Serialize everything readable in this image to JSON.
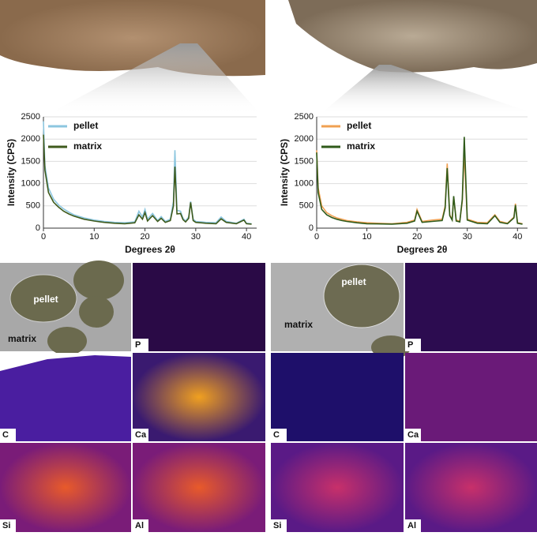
{
  "chart_data": [
    {
      "type": "line",
      "xlabel": "Degrees 2θ",
      "ylabel": "Intensity (CPS)",
      "x": [
        0,
        0.3,
        1,
        2,
        3,
        4,
        5,
        6,
        8,
        10,
        12,
        14,
        16,
        18,
        18.8,
        19.5,
        20,
        20.5,
        21.5,
        22.5,
        23.2,
        24,
        25,
        25.6,
        25.9,
        26.3,
        27,
        27.5,
        28,
        28.6,
        29,
        29.5,
        30,
        32,
        34,
        35,
        36,
        38,
        39.5,
        40,
        41
      ],
      "series": [
        {
          "name": "pellet",
          "color": "#8cc6df",
          "values": [
            2400,
            1400,
            900,
            650,
            520,
            430,
            360,
            300,
            230,
            180,
            150,
            130,
            120,
            140,
            380,
            250,
            420,
            200,
            330,
            170,
            260,
            150,
            200,
            600,
            1750,
            400,
            380,
            220,
            160,
            250,
            600,
            200,
            150,
            130,
            120,
            250,
            150,
            110,
            200,
            110,
            100
          ]
        },
        {
          "name": "matrix",
          "color": "#3f5a1c",
          "values": [
            2100,
            1300,
            800,
            580,
            470,
            380,
            320,
            270,
            200,
            160,
            130,
            110,
            100,
            120,
            300,
            200,
            350,
            160,
            280,
            150,
            220,
            130,
            170,
            500,
            1380,
            320,
            330,
            190,
            140,
            220,
            580,
            170,
            130,
            110,
            100,
            210,
            130,
            100,
            180,
            100,
            90
          ]
        }
      ],
      "xlim": [
        0,
        42
      ],
      "xticks": [
        0,
        10,
        20,
        30,
        40
      ],
      "ylim": [
        0,
        2500
      ],
      "yticks": [
        0,
        500,
        1000,
        1500,
        2000,
        2500
      ]
    },
    {
      "type": "line",
      "xlabel": "Degrees 2θ",
      "ylabel": "Intensity (CPS)",
      "x": [
        0,
        0.3,
        1,
        2,
        3,
        4,
        5,
        6,
        8,
        10,
        12,
        15,
        18,
        19.5,
        20,
        21,
        23,
        25,
        25.6,
        26,
        26.5,
        27,
        27.3,
        27.8,
        28.5,
        29,
        29.4,
        30,
        32,
        34,
        35.5,
        36.5,
        38,
        39.3,
        39.6,
        40,
        41
      ],
      "series": [
        {
          "name": "pellet",
          "color": "#f0a052",
          "values": [
            1750,
            900,
            500,
            350,
            280,
            230,
            200,
            170,
            140,
            120,
            110,
            100,
            130,
            180,
            420,
            150,
            180,
            200,
            500,
            1450,
            300,
            200,
            700,
            180,
            150,
            600,
            1700,
            200,
            130,
            120,
            300,
            150,
            110,
            250,
            550,
            120,
            100
          ]
        },
        {
          "name": "matrix",
          "color": "#2f5a1a",
          "values": [
            1700,
            800,
            420,
            300,
            240,
            200,
            170,
            150,
            120,
            100,
            95,
            90,
            110,
            160,
            380,
            130,
            150,
            170,
            450,
            1350,
            280,
            180,
            720,
            160,
            140,
            650,
            2050,
            180,
            110,
            100,
            280,
            130,
            100,
            230,
            520,
            110,
            90
          ]
        }
      ],
      "xlim": [
        0,
        42
      ],
      "xticks": [
        0,
        10,
        20,
        30,
        40
      ],
      "ylim": [
        0,
        2500
      ],
      "yticks": [
        0,
        500,
        1000,
        1500,
        2000,
        2500
      ]
    }
  ],
  "maps": [
    {
      "pellet": "pellet",
      "matrix": "matrix",
      "elements": [
        "P",
        "C",
        "Ca",
        "Si",
        "Al"
      ]
    },
    {
      "pellet": "pellet",
      "matrix": "matrix",
      "elements": [
        "P",
        "C",
        "Ca",
        "Si",
        "Al"
      ]
    }
  ]
}
